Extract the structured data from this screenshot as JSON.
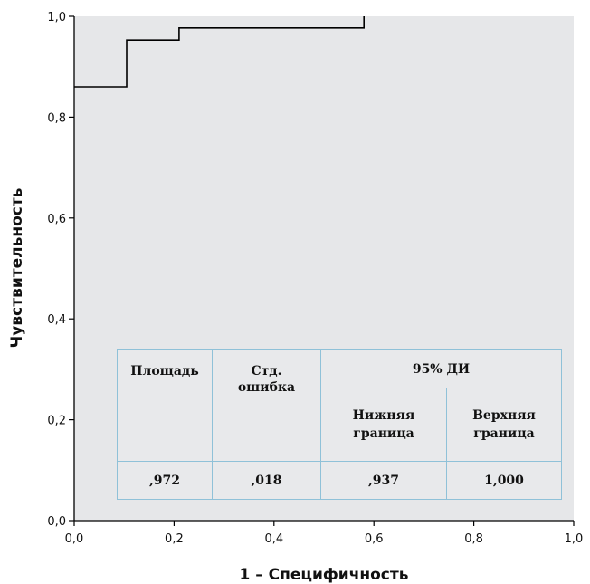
{
  "chart_data": {
    "type": "line",
    "title": "",
    "xlabel": "1 – Специфичность",
    "ylabel": "Чувствительность",
    "xlim": [
      0,
      1
    ],
    "ylim": [
      0,
      1
    ],
    "x_ticks": [
      "0,0",
      "0,2",
      "0,4",
      "0,6",
      "0,8",
      "1,0"
    ],
    "y_ticks": [
      "0,0",
      "0,2",
      "0,4",
      "0,6",
      "0,8",
      "1,0"
    ],
    "step": true,
    "series": [
      {
        "x": [
          0.0,
          0.105,
          0.105,
          0.21,
          0.21,
          0.58,
          0.58
        ],
        "y": [
          0.86,
          0.86,
          0.953,
          0.953,
          0.977,
          0.977,
          1.0
        ]
      }
    ],
    "grid": false,
    "plot_background": "#e6e7e9",
    "line_color": "#000000"
  },
  "table": {
    "headers": {
      "area": "Площадь",
      "std_error": "Стд. ошибка",
      "ci": "95% ДИ",
      "lower": "Нижняя граница",
      "upper": "Верхняя граница"
    },
    "values": {
      "area": ",972",
      "std_error": ",018",
      "lower": ",937",
      "upper": "1,000"
    },
    "border_color": "#8fc1d8"
  }
}
